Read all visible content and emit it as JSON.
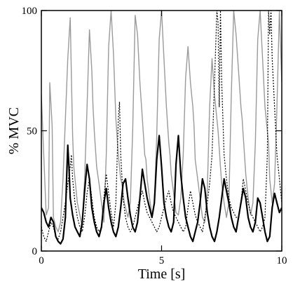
{
  "chart_data": {
    "type": "line",
    "xlabel": "Time [s]",
    "ylabel": "% MVC",
    "xlim": [
      0,
      10
    ],
    "ylim": [
      0,
      100
    ],
    "x_ticks": [
      0,
      5,
      10
    ],
    "y_ticks": [
      0,
      50,
      100
    ],
    "x_tick_labels": [
      "0",
      "5",
      "10"
    ],
    "y_tick_labels": [
      "0",
      "50",
      "100"
    ],
    "grid": false,
    "series": [
      {
        "style": "gray-solid",
        "color": "#9a9a9a",
        "x": [
          0.0,
          0.1,
          0.2,
          0.3,
          0.35,
          0.45,
          0.5,
          0.6,
          0.7,
          0.8,
          0.9,
          1.0,
          1.1,
          1.2,
          1.25,
          1.3,
          1.35,
          1.45,
          1.5,
          1.6,
          1.7,
          1.8,
          1.9,
          2.0,
          2.1,
          2.15,
          2.2,
          2.3,
          2.4,
          2.5,
          2.6,
          2.7,
          2.8,
          2.9,
          3.0,
          3.1,
          3.2,
          3.3,
          3.35,
          3.45,
          3.5,
          3.6,
          3.7,
          3.8,
          3.9,
          4.0,
          4.1,
          4.2,
          4.3,
          4.35,
          4.4,
          4.5,
          4.6,
          4.7,
          4.8,
          4.9,
          5.0,
          5.1,
          5.2,
          5.3,
          5.35,
          5.4,
          5.5,
          5.6,
          5.7,
          5.8,
          5.9,
          6.0,
          6.1,
          6.2,
          6.3,
          6.35,
          6.4,
          6.5,
          6.6,
          6.7,
          6.8,
          6.9,
          7.0,
          7.1,
          7.2,
          7.3,
          7.35,
          7.45,
          7.5,
          7.6,
          7.7,
          7.8,
          7.9,
          8.0,
          8.1,
          8.2,
          8.3,
          8.35,
          8.45,
          8.5,
          8.6,
          8.7,
          8.8,
          8.9,
          9.0,
          9.1,
          9.2,
          9.3,
          9.35,
          9.45,
          9.5,
          9.6,
          9.7,
          9.8,
          9.9,
          10.0
        ],
        "y": [
          65,
          40,
          15,
          18,
          70,
          52,
          14,
          10,
          8,
          12,
          30,
          55,
          80,
          97,
          72,
          48,
          35,
          25,
          20,
          15,
          10,
          30,
          60,
          92,
          75,
          60,
          50,
          35,
          28,
          20,
          12,
          40,
          85,
          100,
          82,
          55,
          40,
          30,
          28,
          20,
          18,
          14,
          20,
          50,
          98,
          90,
          70,
          55,
          40,
          38,
          30,
          22,
          15,
          20,
          48,
          88,
          100,
          80,
          60,
          45,
          40,
          32,
          24,
          16,
          15,
          22,
          40,
          72,
          85,
          70,
          60,
          52,
          38,
          30,
          22,
          14,
          12,
          25,
          60,
          80,
          65,
          55,
          50,
          35,
          28,
          20,
          14,
          20,
          65,
          100,
          90,
          75,
          60,
          55,
          40,
          32,
          22,
          15,
          20,
          45,
          88,
          100,
          80,
          60,
          55,
          45,
          30,
          20,
          28,
          60,
          100,
          70
        ]
      },
      {
        "style": "black-thick",
        "color": "#000000",
        "x": [
          0.0,
          0.1,
          0.2,
          0.3,
          0.4,
          0.5,
          0.6,
          0.7,
          0.8,
          0.9,
          1.0,
          1.05,
          1.1,
          1.15,
          1.2,
          1.3,
          1.4,
          1.5,
          1.6,
          1.7,
          1.8,
          1.9,
          2.0,
          2.1,
          2.2,
          2.3,
          2.4,
          2.5,
          2.6,
          2.7,
          2.8,
          2.9,
          3.0,
          3.1,
          3.2,
          3.3,
          3.4,
          3.5,
          3.6,
          3.7,
          3.8,
          3.9,
          4.0,
          4.1,
          4.2,
          4.3,
          4.4,
          4.5,
          4.6,
          4.7,
          4.8,
          4.9,
          5.0,
          5.1,
          5.2,
          5.3,
          5.4,
          5.5,
          5.6,
          5.7,
          5.8,
          5.9,
          6.0,
          6.1,
          6.2,
          6.3,
          6.4,
          6.5,
          6.6,
          6.7,
          6.8,
          6.9,
          7.0,
          7.1,
          7.2,
          7.3,
          7.4,
          7.5,
          7.6,
          7.7,
          7.8,
          7.9,
          8.0,
          8.1,
          8.2,
          8.3,
          8.4,
          8.5,
          8.6,
          8.7,
          8.8,
          8.9,
          9.0,
          9.1,
          9.2,
          9.3,
          9.4,
          9.5,
          9.6,
          9.7,
          9.8,
          9.9,
          10.0
        ],
        "y": [
          18,
          16,
          12,
          10,
          14,
          12,
          6,
          4,
          3,
          5,
          14,
          30,
          44,
          35,
          22,
          15,
          10,
          8,
          6,
          12,
          25,
          36,
          30,
          18,
          12,
          8,
          6,
          10,
          20,
          26,
          18,
          12,
          8,
          6,
          10,
          18,
          28,
          30,
          22,
          15,
          10,
          8,
          12,
          22,
          34,
          28,
          22,
          18,
          14,
          20,
          38,
          48,
          35,
          20,
          14,
          10,
          8,
          12,
          36,
          48,
          32,
          22,
          14,
          10,
          6,
          4,
          8,
          12,
          20,
          30,
          26,
          16,
          10,
          6,
          4,
          8,
          14,
          22,
          30,
          25,
          20,
          14,
          10,
          8,
          14,
          20,
          26,
          22,
          14,
          10,
          8,
          12,
          22,
          20,
          14,
          8,
          4,
          6,
          18,
          24,
          20,
          16,
          18
        ]
      },
      {
        "style": "black-dotted",
        "color": "#000000",
        "x": [
          0.0,
          0.1,
          0.2,
          0.3,
          0.4,
          0.5,
          0.6,
          0.7,
          0.8,
          0.9,
          1.0,
          1.1,
          1.2,
          1.25,
          1.3,
          1.4,
          1.5,
          1.6,
          1.7,
          1.8,
          1.9,
          2.0,
          2.1,
          2.2,
          2.3,
          2.4,
          2.5,
          2.6,
          2.7,
          2.8,
          2.9,
          3.0,
          3.1,
          3.2,
          3.25,
          3.3,
          3.4,
          3.5,
          3.6,
          3.7,
          3.8,
          3.9,
          4.0,
          4.1,
          4.2,
          4.3,
          4.4,
          4.5,
          4.6,
          4.7,
          4.8,
          4.9,
          5.0,
          5.1,
          5.2,
          5.3,
          5.4,
          5.5,
          5.6,
          5.7,
          5.8,
          5.9,
          6.0,
          6.1,
          6.2,
          6.3,
          6.4,
          6.5,
          6.6,
          6.7,
          6.8,
          6.9,
          7.0,
          7.1,
          7.2,
          7.3,
          7.35,
          7.4,
          7.45,
          7.5,
          7.6,
          7.7,
          7.8,
          7.9,
          8.0,
          8.1,
          8.2,
          8.3,
          8.4,
          8.5,
          8.6,
          8.7,
          8.8,
          8.9,
          9.0,
          9.1,
          9.2,
          9.3,
          9.4,
          9.45,
          9.5,
          9.55,
          9.6,
          9.7,
          9.8,
          9.9,
          10.0
        ],
        "y": [
          10,
          6,
          4,
          8,
          12,
          10,
          6,
          5,
          8,
          14,
          20,
          28,
          35,
          40,
          30,
          20,
          14,
          10,
          8,
          14,
          24,
          30,
          22,
          14,
          10,
          8,
          10,
          22,
          32,
          24,
          16,
          10,
          20,
          55,
          62,
          40,
          22,
          14,
          10,
          8,
          10,
          14,
          18,
          22,
          25,
          20,
          16,
          14,
          12,
          10,
          8,
          10,
          14,
          18,
          22,
          25,
          20,
          16,
          14,
          12,
          10,
          8,
          10,
          18,
          25,
          20,
          15,
          12,
          10,
          8,
          14,
          20,
          28,
          40,
          70,
          100,
          95,
          60,
          100,
          70,
          40,
          30,
          22,
          18,
          16,
          14,
          14,
          20,
          30,
          25,
          20,
          16,
          14,
          12,
          10,
          8,
          10,
          14,
          40,
          100,
          90,
          100,
          80,
          60,
          40,
          30,
          20
        ]
      }
    ]
  }
}
